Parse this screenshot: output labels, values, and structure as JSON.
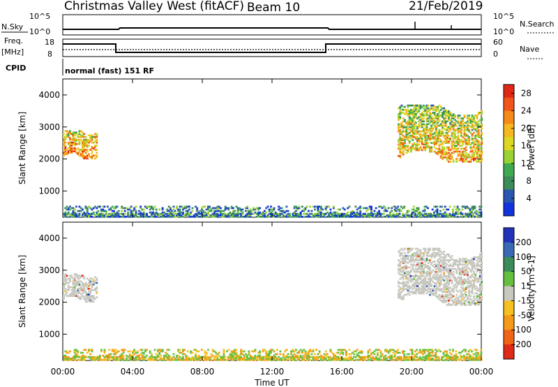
{
  "header": {
    "station": "Christmas Valley West (fitACF)",
    "beam": "Beam 10",
    "date": "21/Feb/2019"
  },
  "strips": {
    "nsky_label": "N.Sky",
    "nsky_ticks": [
      "10^5",
      "10^0"
    ],
    "nsearch_label": "N.Search",
    "nsearch_ticks": [
      "10^5",
      "10^0"
    ],
    "freq_label": "Freq.",
    "freq_unit": "[MHz]",
    "freq_ticks": [
      "18",
      "8"
    ],
    "nave_label": "Nave",
    "nave_ticks": [
      "60",
      "0"
    ],
    "cpid_label": "CPID",
    "cpid_value": "normal (fast) 151 RF"
  },
  "chart_data": [
    {
      "type": "heatmap",
      "panel": "power",
      "ylabel": "Slant Range [km]",
      "xlabel": "Time UT",
      "x_ticks": [
        "00:00",
        "04:00",
        "08:00",
        "12:00",
        "16:00",
        "20:00",
        "00:00"
      ],
      "y_ticks": [
        "1000",
        "2000",
        "3000",
        "4000"
      ],
      "xlim_hours": [
        0,
        24
      ],
      "ylim_km": [
        180,
        4500
      ],
      "colorbar": {
        "label": "Power [dB]",
        "ticks": [
          "4",
          "8",
          "12",
          "16",
          "20",
          "24",
          "28"
        ],
        "range": [
          0,
          30
        ],
        "colors": [
          "#1133dd",
          "#2a55b0",
          "#3d8a5a",
          "#3fa950",
          "#9ad233",
          "#ddd722",
          "#f5b820",
          "#f68a18",
          "#f0561b",
          "#e02818"
        ]
      },
      "regions": [
        {
          "t0": 0.0,
          "t1": 1.9,
          "r0": 2000,
          "r1": 2900,
          "mean": 22
        },
        {
          "t0": 19.2,
          "t1": 24.0,
          "r0": 1900,
          "r1": 3700,
          "mean": 18
        },
        {
          "t0": 0.0,
          "t1": 24.0,
          "r0": 180,
          "r1": 500,
          "mean": 8
        }
      ]
    },
    {
      "type": "heatmap",
      "panel": "velocity",
      "ylabel": "Slant Range [km]",
      "xlabel": "Time UT",
      "x_ticks": [
        "00:00",
        "04:00",
        "08:00",
        "12:00",
        "16:00",
        "20:00",
        "00:00"
      ],
      "y_ticks": [
        "1000",
        "2000",
        "3000",
        "4000"
      ],
      "xlim_hours": [
        0,
        24
      ],
      "ylim_km": [
        180,
        4500
      ],
      "colorbar": {
        "label": "Velocity [m s-1]",
        "ticks": [
          "200",
          "100",
          "50",
          "15",
          "-15",
          "-50",
          "-100",
          "-200"
        ],
        "colors": [
          "#2233bb",
          "#3a6ab5",
          "#3d8a5a",
          "#66c040",
          "#c8c8c0",
          "#f5c020",
          "#f59a18",
          "#f06418",
          "#e02a18"
        ]
      },
      "regions": [
        {
          "t0": 0.0,
          "t1": 1.9,
          "r0": 2000,
          "r1": 2900,
          "mean": 0
        },
        {
          "t0": 19.2,
          "t1": 24.0,
          "r0": 1900,
          "r1": 3700,
          "mean": 0
        },
        {
          "t0": 0.0,
          "t1": 24.0,
          "r0": 180,
          "r1": 500,
          "mean": -40
        }
      ]
    }
  ]
}
